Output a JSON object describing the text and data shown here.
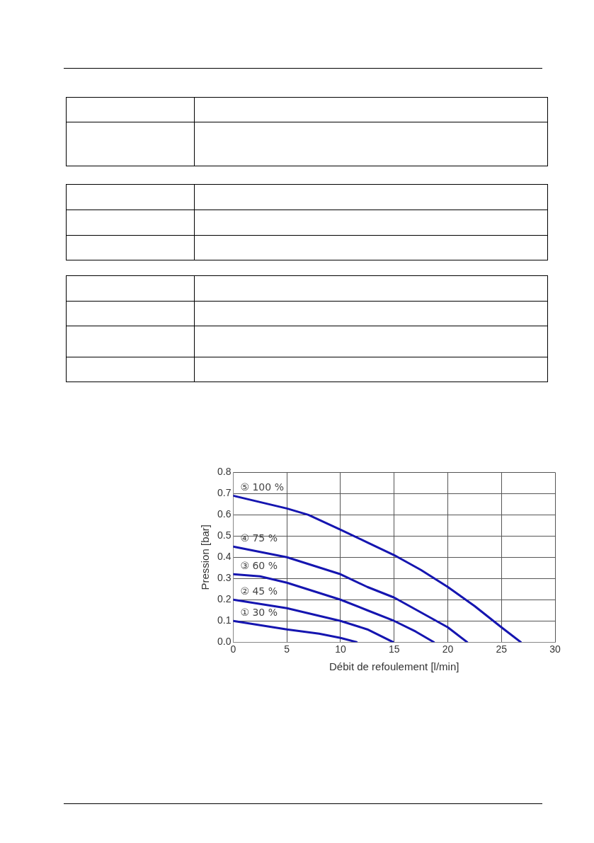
{
  "chart_data": {
    "type": "line",
    "xlabel": "Débit de refoulement [l/min]",
    "ylabel": "Pression [bar]",
    "xlim": [
      0,
      30
    ],
    "xticks": [
      0,
      5,
      10,
      15,
      20,
      25,
      30
    ],
    "ylim": [
      0,
      0.8
    ],
    "yticks": [
      {
        "value": 0,
        "label": "0.0"
      },
      {
        "value": 0.1,
        "label": "0.1"
      },
      {
        "value": 0.2,
        "label": "0.2"
      },
      {
        "value": 0.3,
        "label": "0.3"
      },
      {
        "value": 0.4,
        "label": "0.4"
      },
      {
        "value": 0.5,
        "label": "0.5"
      },
      {
        "value": 0.6,
        "label": "0.6"
      },
      {
        "value": 0.7,
        "label": "0.7"
      },
      {
        "value": 0.8,
        "label": "0.8"
      }
    ],
    "grid": true,
    "legend": false,
    "marker": "none",
    "line_style": "solid",
    "series": [
      {
        "name": "⑤ 100 %",
        "color": "#1515b0",
        "x": [
          0,
          5,
          7,
          10,
          12.5,
          15,
          17.5,
          20,
          22.5,
          25,
          26.8
        ],
        "values": [
          0.69,
          0.63,
          0.6,
          0.53,
          0.47,
          0.41,
          0.34,
          0.26,
          0.17,
          0.07,
          0.0
        ]
      },
      {
        "name": "④ 75 %",
        "color": "#1515b0",
        "x": [
          0,
          5,
          7.5,
          10,
          12.5,
          15,
          17.5,
          20,
          21.8
        ],
        "values": [
          0.45,
          0.4,
          0.36,
          0.32,
          0.26,
          0.21,
          0.14,
          0.07,
          0.0
        ]
      },
      {
        "name": "③ 60 %",
        "color": "#1515b0",
        "x": [
          0,
          2.5,
          5,
          7.5,
          10,
          12.5,
          15,
          17,
          18.7
        ],
        "values": [
          0.32,
          0.31,
          0.28,
          0.24,
          0.2,
          0.15,
          0.1,
          0.05,
          0.0
        ]
      },
      {
        "name": "② 45 %",
        "color": "#1515b0",
        "x": [
          0,
          5,
          7.5,
          10,
          12.5,
          14.9
        ],
        "values": [
          0.2,
          0.16,
          0.13,
          0.1,
          0.06,
          0.0
        ]
      },
      {
        "name": "① 30 %",
        "color": "#1515b0",
        "x": [
          0,
          5,
          8,
          10,
          11.5
        ],
        "values": [
          0.1,
          0.06,
          0.04,
          0.02,
          0.0
        ]
      }
    ]
  }
}
